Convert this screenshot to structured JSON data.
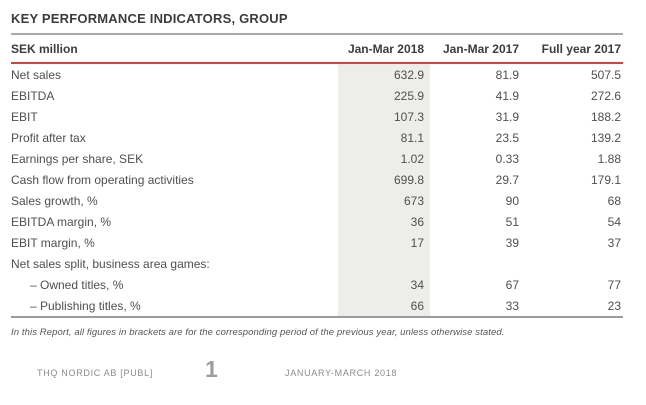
{
  "page": {
    "title": "KEY PERFORMANCE INDICATORS, GROUP",
    "footnote": "In this Report, all figures in brackets are for the corresponding period of the previous year, unless otherwise stated.",
    "footer": {
      "company": "THQ NORDIC AB [PUBL]",
      "page_number": "1",
      "period": "JANUARY-MARCH 2018"
    }
  },
  "table": {
    "header": {
      "unit": "SEK million",
      "col1": "Jan-Mar 2018",
      "col2": "Jan-Mar 2017",
      "col3": "Full year 2017"
    },
    "rows": [
      {
        "label": "Net sales",
        "values": [
          "632.9",
          "81.9",
          "507.5"
        ],
        "indent": false
      },
      {
        "label": "EBITDA",
        "values": [
          "225.9",
          "41.9",
          "272.6"
        ],
        "indent": false
      },
      {
        "label": "EBIT",
        "values": [
          "107.3",
          "31.9",
          "188.2"
        ],
        "indent": false
      },
      {
        "label": "Profit after tax",
        "values": [
          "81.1",
          "23.5",
          "139.2"
        ],
        "indent": false
      },
      {
        "label": "Earnings per share, SEK",
        "values": [
          "1.02",
          "0.33",
          "1.88"
        ],
        "indent": false
      },
      {
        "label": "Cash flow from operating activities",
        "values": [
          "699.8",
          "29.7",
          "179.1"
        ],
        "indent": false
      },
      {
        "label": "Sales growth, %",
        "values": [
          "673",
          "90",
          "68"
        ],
        "indent": false
      },
      {
        "label": "EBITDA margin, %",
        "values": [
          "36",
          "51",
          "54"
        ],
        "indent": false
      },
      {
        "label": "EBIT margin, %",
        "values": [
          "17",
          "39",
          "37"
        ],
        "indent": false
      },
      {
        "label": "Net sales split, business area games:",
        "values": [
          "",
          "",
          ""
        ],
        "indent": false
      },
      {
        "label": "– Owned titles, %",
        "values": [
          "34",
          "67",
          "77"
        ],
        "indent": true
      },
      {
        "label": "– Publishing titles, %",
        "values": [
          "66",
          "33",
          "23"
        ],
        "indent": true
      }
    ]
  },
  "colors": {
    "accent_red": "#d6423b",
    "column_highlight": "#ededeb",
    "heading_text": "#3c3c3a",
    "body_text": "#514f4b"
  }
}
